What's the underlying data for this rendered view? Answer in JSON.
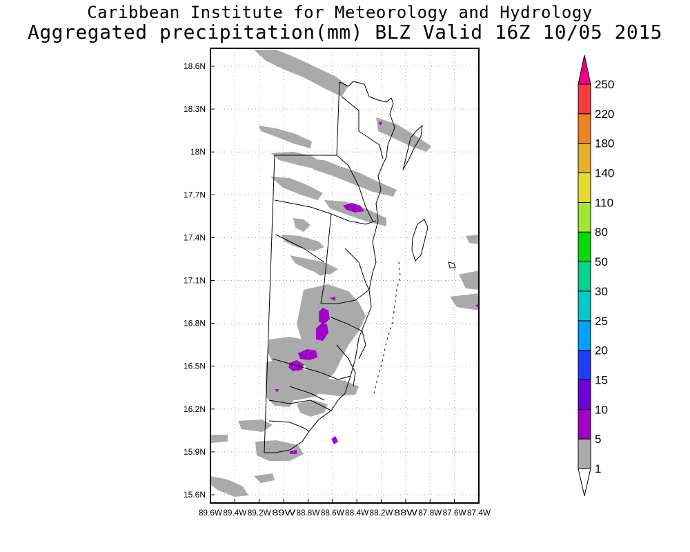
{
  "header": {
    "title_line1": "Caribbean Institute for Meteorology and Hydrology",
    "title_line2": "Aggregated precipitation(mm) BLZ Valid 16Z 10/05 2015"
  },
  "map": {
    "region": "Belize",
    "lon_range": [
      -89.6,
      -87.4
    ],
    "lat_range": [
      15.5,
      18.7
    ],
    "lat_ticks": [
      "18.6N",
      "18.3N",
      "18N",
      "17.7N",
      "17.4N",
      "17.1N",
      "16.8N",
      "16.5N",
      "16.2N",
      "15.9N",
      "15.6N"
    ],
    "lon_ticks": [
      "89.6W",
      "89.4W",
      "89.2W",
      "89W",
      "88.8W",
      "88.6W",
      "88.4W",
      "88.2W",
      "88W",
      "87.8W",
      "87.6W",
      "87.4W"
    ],
    "gridlines": true
  },
  "colorbar": {
    "labels": [
      "1",
      "5",
      "10",
      "15",
      "20",
      "25",
      "30",
      "50",
      "80",
      "110",
      "140",
      "180",
      "220",
      "250"
    ],
    "colors": [
      "#ffffff",
      "#aaaaaa",
      "#a000c8",
      "#6e00dc",
      "#1e3cff",
      "#00a0ff",
      "#00c8c8",
      "#00d28c",
      "#00dc00",
      "#a0e632",
      "#e6dc32",
      "#e6af2d",
      "#f08228",
      "#fa3c3c",
      "#f00082"
    ]
  }
}
